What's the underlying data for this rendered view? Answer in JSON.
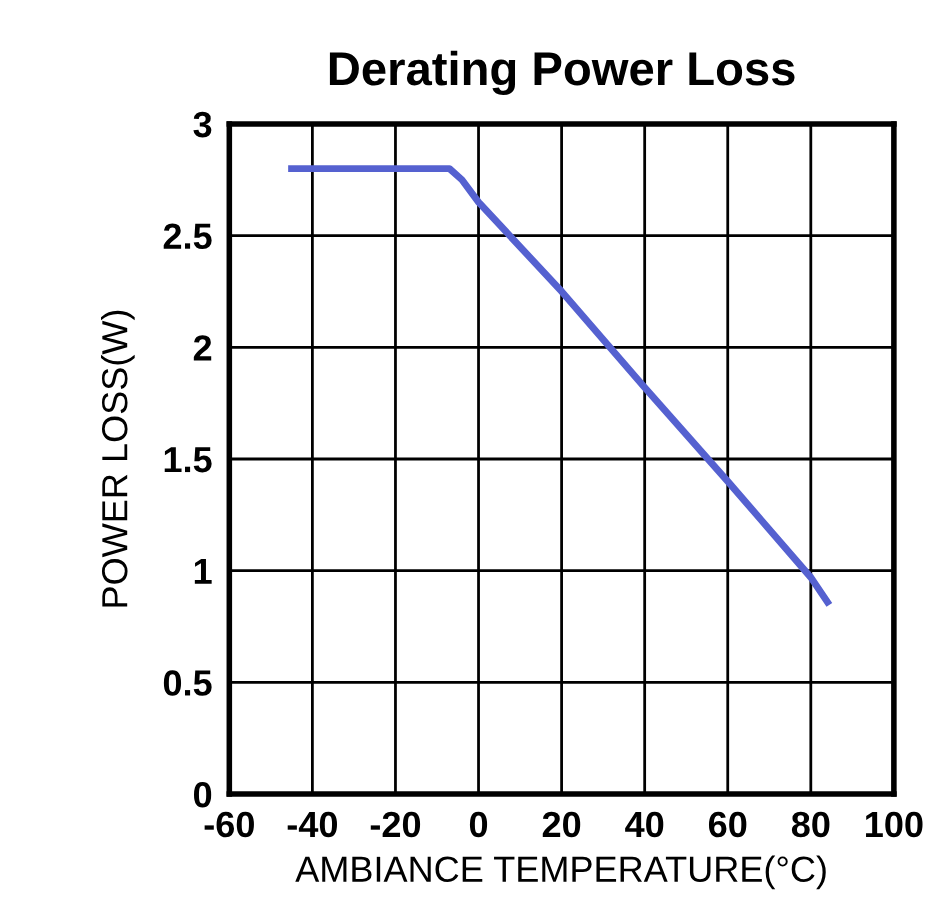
{
  "chart_data": {
    "type": "line",
    "title": "Derating Power Loss",
    "xlabel": "AMBIANCE TEMPERATURE(°C)",
    "ylabel": "POWER LOSS(W)",
    "series": [
      {
        "color": "#5561d0",
        "x": [
          -45,
          -7,
          -4,
          0,
          20,
          40,
          60,
          80,
          84
        ],
        "values": [
          2.8,
          2.8,
          2.75,
          2.65,
          2.25,
          1.82,
          1.4,
          0.97,
          0.86
        ]
      }
    ],
    "xlim": [
      -60,
      100
    ],
    "xticks": [
      -60,
      -40,
      -20,
      0,
      20,
      40,
      60,
      80,
      100
    ],
    "ylim": [
      0,
      3
    ],
    "yticks": [
      0,
      0.5,
      1,
      1.5,
      2,
      2.5,
      3
    ],
    "grid": true,
    "marker": "none",
    "line_style": "solid"
  }
}
